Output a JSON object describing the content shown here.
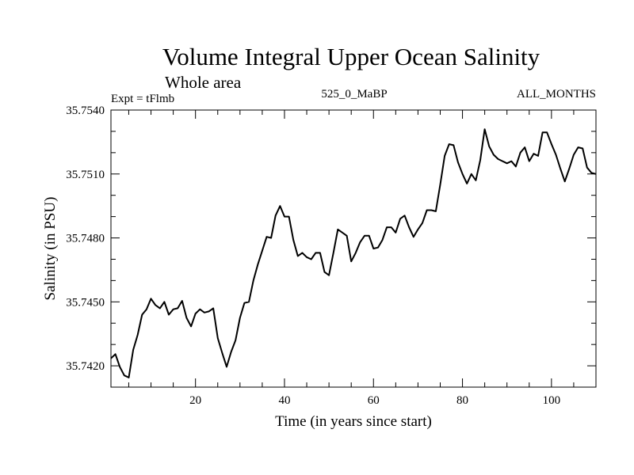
{
  "chart_data": {
    "type": "line",
    "title": "Volume Integral Upper Ocean Salinity",
    "subtitle": "Whole area",
    "expt_label": "Expt = tFlmb",
    "run_label": "525_0_MaBP",
    "months_label": "ALL_MONTHS",
    "xlabel": "Time (in years since start)",
    "ylabel": "Salinity (in PSU)",
    "xlim": [
      1,
      110
    ],
    "ylim": [
      35.741,
      35.754
    ],
    "x_ticks": [
      20,
      40,
      60,
      80,
      100
    ],
    "y_ticks": [
      "35.7420",
      "35.7450",
      "35.7480",
      "35.7510",
      "35.7540"
    ],
    "series": [
      {
        "name": "Salinity",
        "x": [
          1,
          2,
          3,
          4,
          5,
          6,
          7,
          8,
          9,
          10,
          11,
          12,
          13,
          14,
          15,
          16,
          17,
          18,
          19,
          20,
          21,
          22,
          23,
          24,
          25,
          26,
          27,
          28,
          29,
          30,
          31,
          32,
          33,
          34,
          35,
          36,
          37,
          38,
          39,
          40,
          41,
          42,
          43,
          44,
          45,
          46,
          47,
          48,
          49,
          50,
          51,
          52,
          53,
          54,
          55,
          56,
          57,
          58,
          59,
          60,
          61,
          62,
          63,
          64,
          65,
          66,
          67,
          68,
          69,
          70,
          71,
          72,
          73,
          74,
          75,
          76,
          77,
          78,
          79,
          80,
          81,
          82,
          83,
          84,
          85,
          86,
          87,
          88,
          89,
          90,
          91,
          92,
          93,
          94,
          95,
          96,
          97,
          98,
          99,
          100,
          101,
          102,
          103,
          104,
          105,
          106,
          107,
          108,
          109,
          110
        ],
        "values": [
          35.74235,
          35.74255,
          35.74195,
          35.74155,
          35.74145,
          35.74275,
          35.74345,
          35.7444,
          35.74465,
          35.74515,
          35.74485,
          35.7447,
          35.745,
          35.7444,
          35.74465,
          35.7447,
          35.74505,
          35.74425,
          35.74385,
          35.74445,
          35.74465,
          35.7445,
          35.74455,
          35.7447,
          35.7433,
          35.7426,
          35.74195,
          35.74265,
          35.7432,
          35.74425,
          35.74495,
          35.745,
          35.746,
          35.74675,
          35.7474,
          35.74805,
          35.748,
          35.74905,
          35.7495,
          35.749,
          35.749,
          35.7479,
          35.74715,
          35.7473,
          35.7471,
          35.747,
          35.7473,
          35.7473,
          35.7464,
          35.74625,
          35.7473,
          35.7484,
          35.74825,
          35.7481,
          35.7469,
          35.7473,
          35.7478,
          35.7481,
          35.7481,
          35.7475,
          35.74755,
          35.7479,
          35.7485,
          35.7485,
          35.74825,
          35.7489,
          35.74905,
          35.7485,
          35.74805,
          35.7484,
          35.7487,
          35.7493,
          35.7493,
          35.74925,
          35.7505,
          35.75185,
          35.7524,
          35.75235,
          35.75155,
          35.751,
          35.75055,
          35.751,
          35.7507,
          35.75165,
          35.7531,
          35.7523,
          35.7519,
          35.7517,
          35.7516,
          35.7515,
          35.7516,
          35.75135,
          35.752,
          35.75225,
          35.7516,
          35.75195,
          35.75185,
          35.75295,
          35.75295,
          35.7524,
          35.7519,
          35.75125,
          35.75065,
          35.75125,
          35.7519,
          35.75225,
          35.7522,
          35.7513,
          35.75105,
          35.751
        ]
      }
    ]
  }
}
